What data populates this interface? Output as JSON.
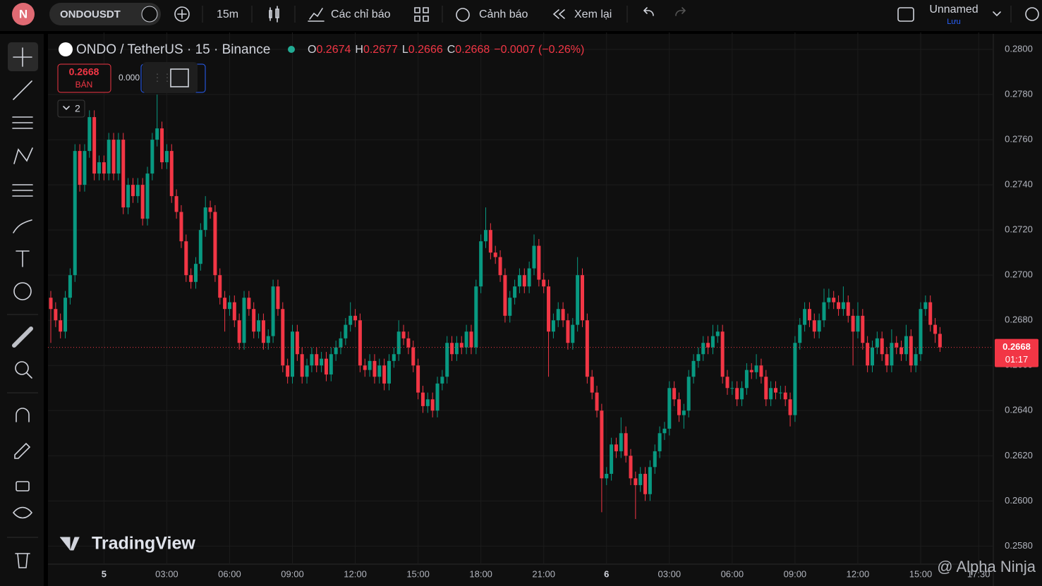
{
  "toolbar": {
    "avatar": "N",
    "symbol": "ONDOUSDT",
    "interval": "15m",
    "indicators": "Các chỉ báo",
    "alerts": "Cảnh báo",
    "replay": "Xem lại",
    "layout_name": "Unnamed",
    "save": "Lưu"
  },
  "legend": {
    "title": "ONDO / TetherUS · 15 · Binance",
    "o": "O",
    "h": "H",
    "l": "L",
    "c": "C",
    "change": "−0.0007 (−0.26%)"
  },
  "trade": {
    "sell": "BÁN",
    "buy_partial": "0.000",
    "collapse": "2"
  },
  "countdown": "01:17",
  "watermark": "TradingView",
  "credit": "@ Alpha Ninja",
  "chart_data": {
    "type": "candlestick",
    "up_color": "#089981",
    "down_color": "#f23645",
    "grid": true,
    "ylim": [
      0.2572,
      0.28075
    ],
    "yticks": [
      {
        "value": 0.28,
        "label": "0.2800"
      },
      {
        "value": 0.278,
        "label": "0.2780"
      },
      {
        "value": 0.276,
        "label": "0.2760"
      },
      {
        "value": 0.274,
        "label": "0.2740"
      },
      {
        "value": 0.272,
        "label": "0.2720"
      },
      {
        "value": 0.27,
        "label": "0.2700"
      },
      {
        "value": 0.268,
        "label": "0.2680"
      },
      {
        "value": 0.266,
        "label": "0.2660"
      },
      {
        "value": 0.264,
        "label": "0.2640"
      },
      {
        "value": 0.262,
        "label": "0.2620"
      },
      {
        "value": 0.26,
        "label": "0.2600"
      },
      {
        "value": 0.258,
        "label": "0.2580"
      }
    ],
    "xticks": [
      {
        "value": 11,
        "label": "5"
      },
      {
        "value": 24,
        "label": "03:00"
      },
      {
        "value": 37,
        "label": "06:00"
      },
      {
        "value": 50,
        "label": "09:00"
      },
      {
        "value": 63,
        "label": "12:00"
      },
      {
        "value": 76,
        "label": "15:00"
      },
      {
        "value": 89,
        "label": "18:00"
      },
      {
        "value": 102,
        "label": "21:00"
      },
      {
        "value": 115,
        "label": "6"
      },
      {
        "value": 128,
        "label": "03:00"
      },
      {
        "value": 141,
        "label": "06:00"
      },
      {
        "value": 154,
        "label": "09:00"
      },
      {
        "value": 167,
        "label": "12:00"
      },
      {
        "value": 180,
        "label": "15:00"
      },
      {
        "value": 192,
        "label": "17:30"
      }
    ],
    "ohlc": [
      [
        0.269,
        0.2693,
        0.267,
        0.2685
      ],
      [
        0.2685,
        0.2688,
        0.2677,
        0.268
      ],
      [
        0.268,
        0.2683,
        0.2672,
        0.2675
      ],
      [
        0.2675,
        0.2693,
        0.2672,
        0.269
      ],
      [
        0.269,
        0.2703,
        0.2687,
        0.27
      ],
      [
        0.27,
        0.2758,
        0.2697,
        0.2755
      ],
      [
        0.2755,
        0.2758,
        0.2737,
        0.274
      ],
      [
        0.274,
        0.2758,
        0.2737,
        0.2755
      ],
      [
        0.2755,
        0.2773,
        0.2752,
        0.277
      ],
      [
        0.277,
        0.2773,
        0.2742,
        0.2745
      ],
      [
        0.2745,
        0.2753,
        0.2742,
        0.275
      ],
      [
        0.275,
        0.2753,
        0.2742,
        0.2745
      ],
      [
        0.2745,
        0.2763,
        0.2742,
        0.276
      ],
      [
        0.276,
        0.2763,
        0.2742,
        0.2745
      ],
      [
        0.2745,
        0.2763,
        0.2742,
        0.276
      ],
      [
        0.276,
        0.2763,
        0.2727,
        0.273
      ],
      [
        0.273,
        0.2743,
        0.2727,
        0.274
      ],
      [
        0.274,
        0.2743,
        0.2732,
        0.2735
      ],
      [
        0.2735,
        0.2743,
        0.2732,
        0.274
      ],
      [
        0.274,
        0.2743,
        0.2722,
        0.2725
      ],
      [
        0.2725,
        0.2748,
        0.2722,
        0.2745
      ],
      [
        0.2745,
        0.2763,
        0.2742,
        0.276
      ],
      [
        0.276,
        0.278,
        0.2757,
        0.2765
      ],
      [
        0.2765,
        0.2768,
        0.2747,
        0.275
      ],
      [
        0.275,
        0.2758,
        0.2747,
        0.2755
      ],
      [
        0.2755,
        0.2758,
        0.2732,
        0.2735
      ],
      [
        0.2735,
        0.2738,
        0.2725,
        0.2728
      ],
      [
        0.2728,
        0.2731,
        0.2712,
        0.2715
      ],
      [
        0.2715,
        0.2718,
        0.2697,
        0.27
      ],
      [
        0.27,
        0.2703,
        0.2694,
        0.2697
      ],
      [
        0.2697,
        0.2708,
        0.2694,
        0.2705
      ],
      [
        0.2705,
        0.2723,
        0.2702,
        0.272
      ],
      [
        0.272,
        0.2735,
        0.2717,
        0.273
      ],
      [
        0.273,
        0.2733,
        0.2725,
        0.2728
      ],
      [
        0.2728,
        0.2731,
        0.2697,
        0.27
      ],
      [
        0.27,
        0.2703,
        0.2687,
        0.269
      ],
      [
        0.269,
        0.2693,
        0.2675,
        0.2685
      ],
      [
        0.2685,
        0.2691,
        0.2682,
        0.2688
      ],
      [
        0.2688,
        0.2691,
        0.2677,
        0.268
      ],
      [
        0.268,
        0.2683,
        0.2667,
        0.267
      ],
      [
        0.267,
        0.2693,
        0.2667,
        0.269
      ],
      [
        0.269,
        0.2693,
        0.2682,
        0.2685
      ],
      [
        0.2685,
        0.2688,
        0.2672,
        0.2675
      ],
      [
        0.2675,
        0.2683,
        0.2672,
        0.268
      ],
      [
        0.268,
        0.2683,
        0.2667,
        0.267
      ],
      [
        0.267,
        0.2676,
        0.2667,
        0.2673
      ],
      [
        0.2673,
        0.2698,
        0.267,
        0.2695
      ],
      [
        0.2695,
        0.2698,
        0.2682,
        0.2685
      ],
      [
        0.2685,
        0.2688,
        0.2657,
        0.266
      ],
      [
        0.266,
        0.2663,
        0.2652,
        0.2655
      ],
      [
        0.2655,
        0.2678,
        0.2652,
        0.2675
      ],
      [
        0.2675,
        0.2678,
        0.2662,
        0.2665
      ],
      [
        0.2665,
        0.2668,
        0.2652,
        0.2655
      ],
      [
        0.2655,
        0.2663,
        0.2652,
        0.266
      ],
      [
        0.266,
        0.2668,
        0.2657,
        0.2665
      ],
      [
        0.2665,
        0.2668,
        0.2657,
        0.266
      ],
      [
        0.266,
        0.2666,
        0.2657,
        0.2663
      ],
      [
        0.2663,
        0.2666,
        0.2653,
        0.2656
      ],
      [
        0.2656,
        0.2668,
        0.2653,
        0.2665
      ],
      [
        0.2665,
        0.2671,
        0.2662,
        0.2668
      ],
      [
        0.2668,
        0.2675,
        0.2665,
        0.2672
      ],
      [
        0.2672,
        0.2681,
        0.2669,
        0.2678
      ],
      [
        0.2678,
        0.2688,
        0.2675,
        0.2682
      ],
      [
        0.2682,
        0.2685,
        0.2677,
        0.268
      ],
      [
        0.268,
        0.2683,
        0.2657,
        0.266
      ],
      [
        0.266,
        0.2663,
        0.2655,
        0.2658
      ],
      [
        0.2658,
        0.2665,
        0.2655,
        0.2662
      ],
      [
        0.2662,
        0.2665,
        0.2652,
        0.2655
      ],
      [
        0.2655,
        0.2663,
        0.2652,
        0.266
      ],
      [
        0.266,
        0.2663,
        0.2649,
        0.2652
      ],
      [
        0.2652,
        0.2665,
        0.2649,
        0.2662
      ],
      [
        0.2662,
        0.2668,
        0.2659,
        0.2665
      ],
      [
        0.2665,
        0.268,
        0.2662,
        0.2675
      ],
      [
        0.2675,
        0.2678,
        0.2669,
        0.2672
      ],
      [
        0.2672,
        0.2675,
        0.2665,
        0.2668
      ],
      [
        0.2668,
        0.2671,
        0.2657,
        0.266
      ],
      [
        0.266,
        0.2663,
        0.2645,
        0.2648
      ],
      [
        0.2648,
        0.2651,
        0.2639,
        0.2642
      ],
      [
        0.2642,
        0.2648,
        0.2639,
        0.2645
      ],
      [
        0.2645,
        0.2648,
        0.2637,
        0.264
      ],
      [
        0.264,
        0.2655,
        0.2637,
        0.2652
      ],
      [
        0.2652,
        0.2658,
        0.2649,
        0.2655
      ],
      [
        0.2655,
        0.2673,
        0.2652,
        0.267
      ],
      [
        0.267,
        0.2673,
        0.2662,
        0.2665
      ],
      [
        0.2665,
        0.2673,
        0.2662,
        0.267
      ],
      [
        0.267,
        0.2673,
        0.2665,
        0.2668
      ],
      [
        0.2668,
        0.2678,
        0.2665,
        0.2675
      ],
      [
        0.2675,
        0.2678,
        0.2665,
        0.2668
      ],
      [
        0.2668,
        0.2698,
        0.2665,
        0.2695
      ],
      [
        0.2695,
        0.2718,
        0.2692,
        0.2715
      ],
      [
        0.2715,
        0.273,
        0.2712,
        0.272
      ],
      [
        0.272,
        0.2723,
        0.2707,
        0.271
      ],
      [
        0.271,
        0.2713,
        0.2705,
        0.2708
      ],
      [
        0.2708,
        0.2711,
        0.2697,
        0.27
      ],
      [
        0.27,
        0.2703,
        0.2679,
        0.2682
      ],
      [
        0.2682,
        0.2693,
        0.2679,
        0.269
      ],
      [
        0.269,
        0.2698,
        0.2687,
        0.2695
      ],
      [
        0.2695,
        0.2703,
        0.2692,
        0.27
      ],
      [
        0.27,
        0.2703,
        0.2692,
        0.2695
      ],
      [
        0.2695,
        0.2706,
        0.2692,
        0.2703
      ],
      [
        0.2703,
        0.2718,
        0.27,
        0.2713
      ],
      [
        0.2713,
        0.2716,
        0.2695,
        0.2698
      ],
      [
        0.2698,
        0.2701,
        0.2692,
        0.2695
      ],
      [
        0.2695,
        0.2698,
        0.2655,
        0.2675
      ],
      [
        0.2675,
        0.2683,
        0.2672,
        0.268
      ],
      [
        0.268,
        0.2688,
        0.2677,
        0.2685
      ],
      [
        0.2685,
        0.2688,
        0.2677,
        0.268
      ],
      [
        0.268,
        0.2683,
        0.2667,
        0.267
      ],
      [
        0.267,
        0.2681,
        0.2667,
        0.2678
      ],
      [
        0.2678,
        0.2708,
        0.2675,
        0.27
      ],
      [
        0.27,
        0.2703,
        0.2677,
        0.268
      ],
      [
        0.268,
        0.2683,
        0.2652,
        0.2655
      ],
      [
        0.2655,
        0.2658,
        0.2645,
        0.2648
      ],
      [
        0.2648,
        0.2651,
        0.2637,
        0.264
      ],
      [
        0.264,
        0.2643,
        0.2595,
        0.261
      ],
      [
        0.261,
        0.2615,
        0.2607,
        0.2612
      ],
      [
        0.2612,
        0.2628,
        0.2609,
        0.2625
      ],
      [
        0.2625,
        0.2628,
        0.2619,
        0.2622
      ],
      [
        0.2622,
        0.2637,
        0.2619,
        0.263
      ],
      [
        0.263,
        0.2633,
        0.2617,
        0.262
      ],
      [
        0.262,
        0.2623,
        0.2607,
        0.261
      ],
      [
        0.261,
        0.2613,
        0.2592,
        0.2607
      ],
      [
        0.2607,
        0.2615,
        0.2604,
        0.2612
      ],
      [
        0.2612,
        0.2615,
        0.26,
        0.2603
      ],
      [
        0.2603,
        0.2618,
        0.26,
        0.2615
      ],
      [
        0.2615,
        0.2625,
        0.2612,
        0.2622
      ],
      [
        0.2622,
        0.2633,
        0.2619,
        0.263
      ],
      [
        0.263,
        0.2635,
        0.2627,
        0.2632
      ],
      [
        0.2632,
        0.2653,
        0.2629,
        0.265
      ],
      [
        0.265,
        0.2653,
        0.2642,
        0.2645
      ],
      [
        0.2645,
        0.2648,
        0.2635,
        0.2638
      ],
      [
        0.2638,
        0.2643,
        0.2632,
        0.264
      ],
      [
        0.264,
        0.2658,
        0.2637,
        0.2655
      ],
      [
        0.2655,
        0.2665,
        0.2652,
        0.2662
      ],
      [
        0.2662,
        0.2668,
        0.2659,
        0.2665
      ],
      [
        0.2665,
        0.2673,
        0.2662,
        0.267
      ],
      [
        0.267,
        0.2673,
        0.2665,
        0.2668
      ],
      [
        0.2668,
        0.2678,
        0.2665,
        0.2673
      ],
      [
        0.2673,
        0.2678,
        0.267,
        0.2675
      ],
      [
        0.2675,
        0.2678,
        0.2652,
        0.2655
      ],
      [
        0.2655,
        0.2658,
        0.2647,
        0.265
      ],
      [
        0.265,
        0.2653,
        0.2647,
        0.265
      ],
      [
        0.265,
        0.2653,
        0.2642,
        0.2645
      ],
      [
        0.2645,
        0.2653,
        0.2642,
        0.265
      ],
      [
        0.265,
        0.2661,
        0.2647,
        0.2658
      ],
      [
        0.2658,
        0.2661,
        0.2654,
        0.2657
      ],
      [
        0.2657,
        0.2665,
        0.2654,
        0.266
      ],
      [
        0.266,
        0.2663,
        0.2652,
        0.2655
      ],
      [
        0.2655,
        0.2658,
        0.2642,
        0.2645
      ],
      [
        0.2645,
        0.2653,
        0.2642,
        0.265
      ],
      [
        0.265,
        0.2653,
        0.2645,
        0.2648
      ],
      [
        0.2648,
        0.2651,
        0.2645,
        0.2648
      ],
      [
        0.2648,
        0.2651,
        0.2642,
        0.2645
      ],
      [
        0.2645,
        0.2648,
        0.2633,
        0.2638
      ],
      [
        0.2638,
        0.2673,
        0.2635,
        0.267
      ],
      [
        0.267,
        0.2681,
        0.2667,
        0.2678
      ],
      [
        0.2678,
        0.2688,
        0.2675,
        0.2685
      ],
      [
        0.2685,
        0.2688,
        0.2677,
        0.268
      ],
      [
        0.268,
        0.2683,
        0.2672,
        0.2675
      ],
      [
        0.2675,
        0.2683,
        0.2672,
        0.268
      ],
      [
        0.268,
        0.2694,
        0.2677,
        0.2688
      ],
      [
        0.2688,
        0.2694,
        0.2685,
        0.269
      ],
      [
        0.269,
        0.2693,
        0.2685,
        0.2688
      ],
      [
        0.2688,
        0.2691,
        0.2682,
        0.2685
      ],
      [
        0.2685,
        0.2695,
        0.2682,
        0.2688
      ],
      [
        0.2688,
        0.2691,
        0.2679,
        0.2682
      ],
      [
        0.2682,
        0.2685,
        0.266,
        0.2675
      ],
      [
        0.2675,
        0.2688,
        0.2672,
        0.2682
      ],
      [
        0.2682,
        0.2685,
        0.2667,
        0.267
      ],
      [
        0.267,
        0.2673,
        0.2657,
        0.266
      ],
      [
        0.266,
        0.2671,
        0.2657,
        0.2668
      ],
      [
        0.2668,
        0.2675,
        0.2665,
        0.2672
      ],
      [
        0.2672,
        0.2675,
        0.2662,
        0.2665
      ],
      [
        0.2665,
        0.2668,
        0.2657,
        0.266
      ],
      [
        0.266,
        0.2676,
        0.2657,
        0.267
      ],
      [
        0.267,
        0.2673,
        0.2665,
        0.2668
      ],
      [
        0.2668,
        0.2671,
        0.2662,
        0.2665
      ],
      [
        0.2665,
        0.2678,
        0.2662,
        0.2673
      ],
      [
        0.2673,
        0.2676,
        0.2657,
        0.266
      ],
      [
        0.266,
        0.2668,
        0.2657,
        0.2665
      ],
      [
        0.2665,
        0.2688,
        0.2662,
        0.2685
      ],
      [
        0.2685,
        0.2691,
        0.2682,
        0.2688
      ],
      [
        0.2688,
        0.2691,
        0.2675,
        0.2678
      ],
      [
        0.2678,
        0.2681,
        0.267,
        0.2674
      ],
      [
        0.2674,
        0.2677,
        0.2666,
        0.2668
      ]
    ]
  }
}
